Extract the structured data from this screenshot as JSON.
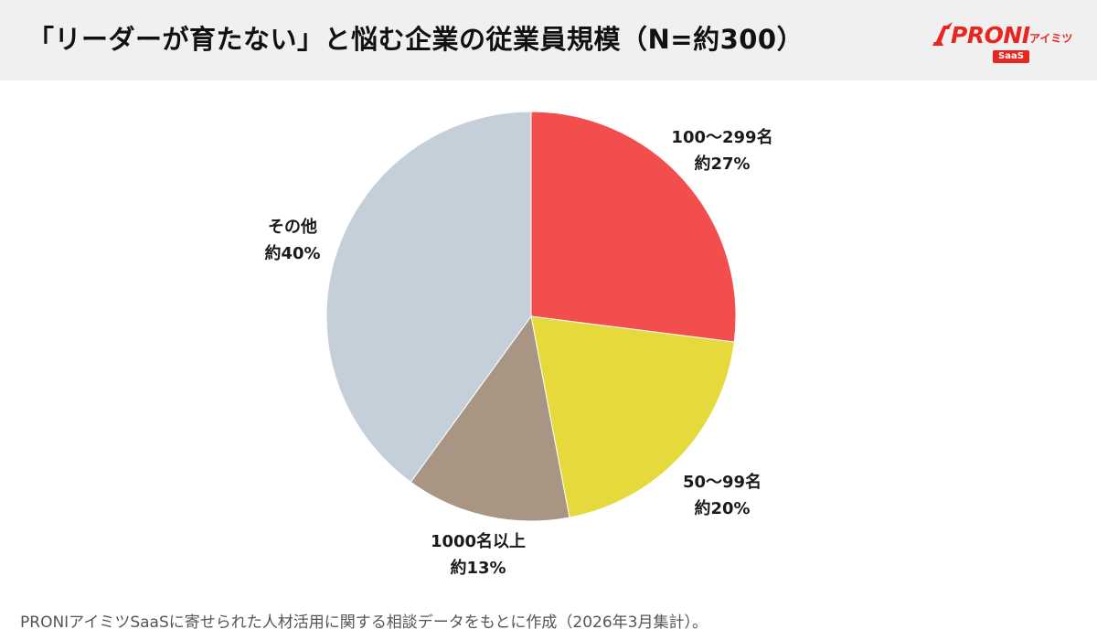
{
  "header": {
    "title": "「リーダーが育たない」と悩む企業の従業員規模（N=約300）"
  },
  "logo": {
    "brand": "PRONI",
    "kana": "アイミツ",
    "badge": "SaaS",
    "color": "#e8251f"
  },
  "chart_data": {
    "type": "pie",
    "title": "「リーダーが育たない」と悩む企業の従業員規模（N=約300）",
    "start_angle_deg": 0,
    "direction": "clockwise",
    "slices": [
      {
        "label": "100〜299名",
        "value_label": "約27%",
        "value": 27,
        "color": "#f24e4e"
      },
      {
        "label": "50〜99名",
        "value_label": "約20%",
        "value": 20,
        "color": "#e5d93c"
      },
      {
        "label": "1000名以上",
        "value_label": "約13%",
        "value": 13,
        "color": "#a89584"
      },
      {
        "label": "その他",
        "value_label": "約40%",
        "value": 40,
        "color": "#c5cfda"
      }
    ]
  },
  "footnote": "PRONIアイミツSaaSに寄せられた人材活用に関する相談データをもとに作成（2026年3月集計）。"
}
